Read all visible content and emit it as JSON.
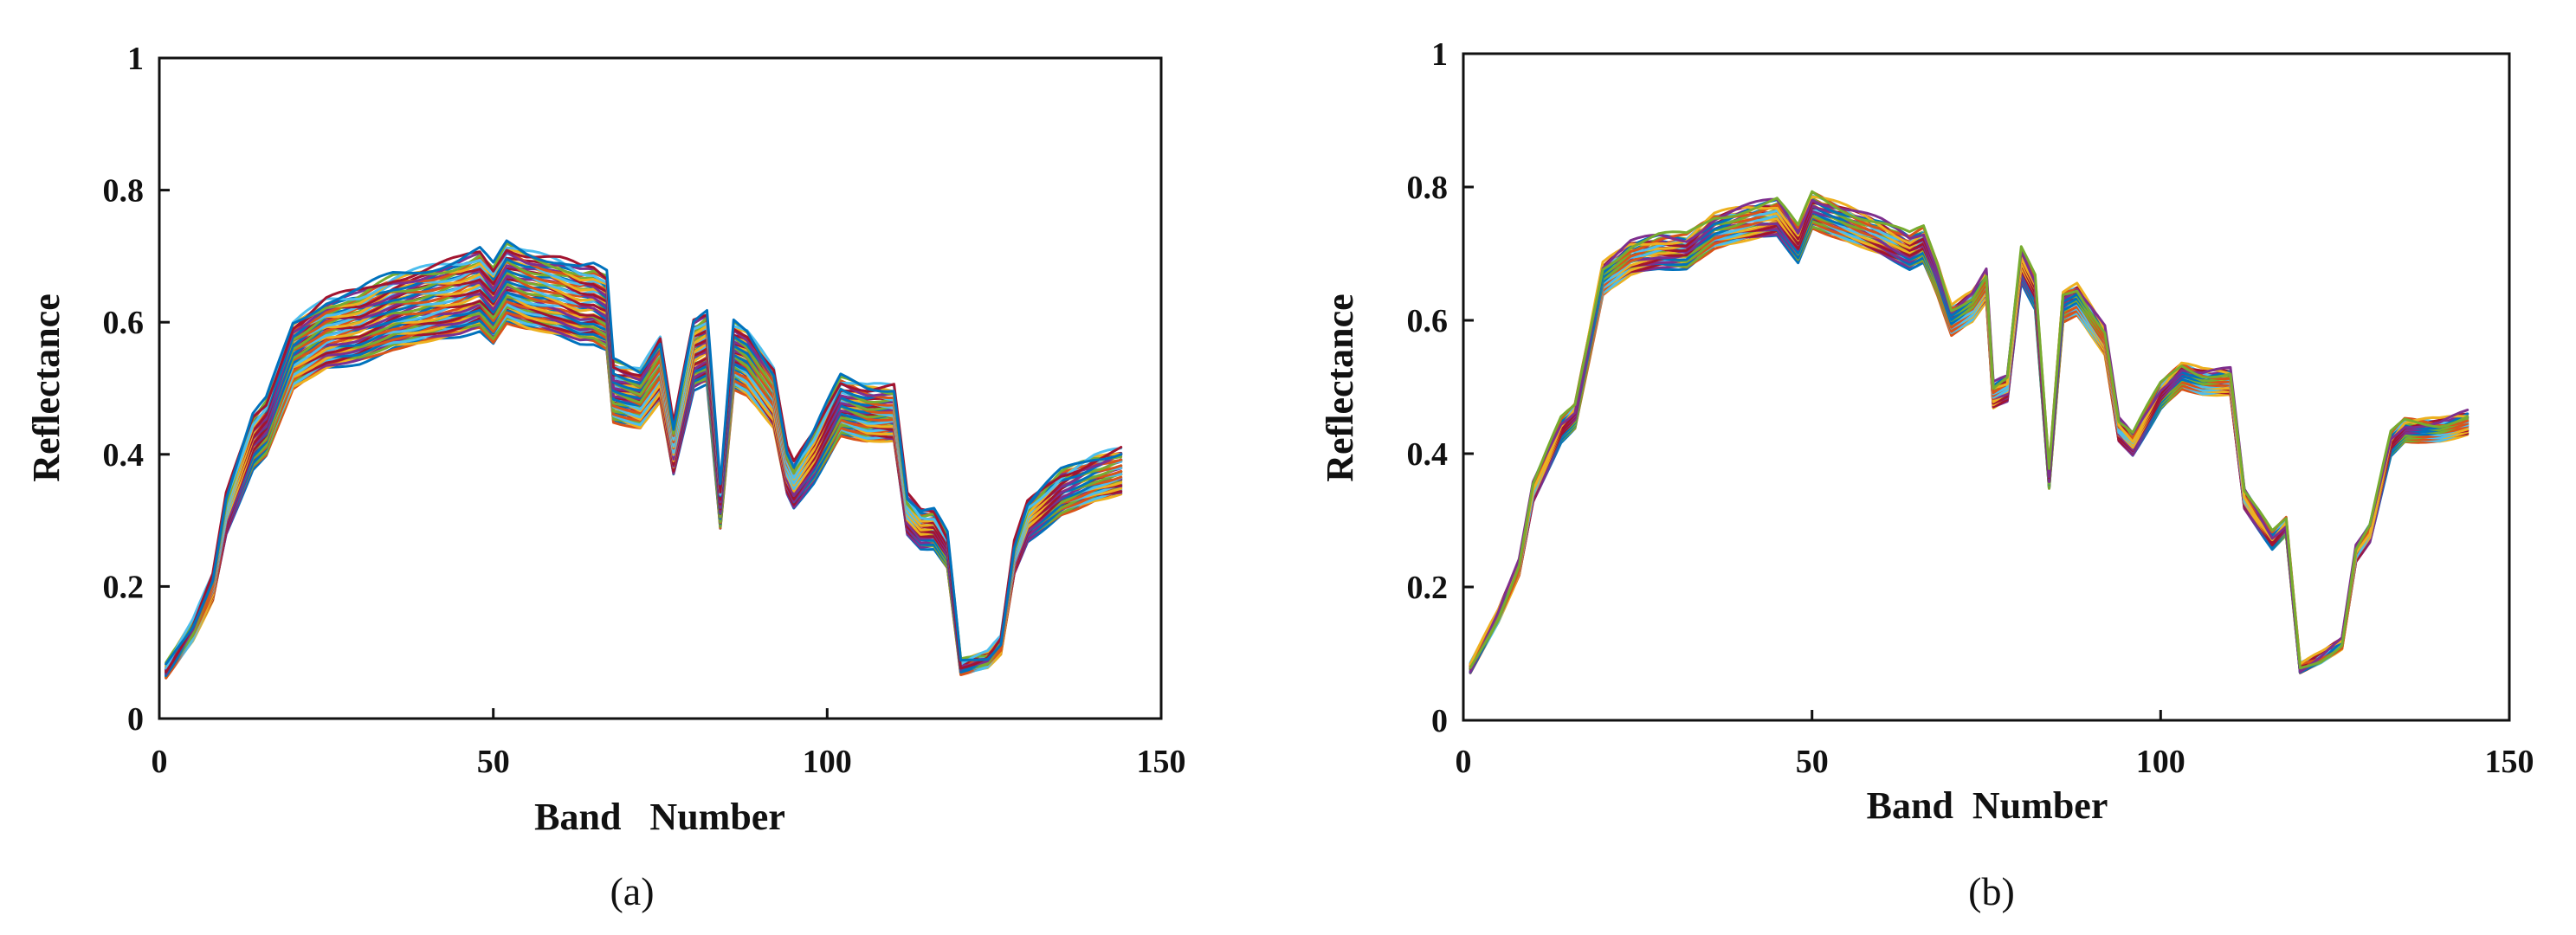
{
  "chart_data": [
    {
      "type": "line",
      "panel": "(a)",
      "caption": "(a)",
      "xlabel": "Band   Number",
      "ylabel": "Reflectance",
      "xlim": [
        0,
        150
      ],
      "ylim": [
        0,
        1
      ],
      "xticks": [
        0,
        50,
        100,
        150
      ],
      "yticks": [
        0,
        0.2,
        0.4,
        0.6,
        0.8,
        1
      ],
      "xtick_labels": [
        "0",
        "50",
        "100",
        "150"
      ],
      "ytick_labels": [
        "0",
        "0.2",
        "0.4",
        "0.6",
        "0.8",
        "1"
      ],
      "x_start": 1,
      "x_end": 144,
      "spread": 0.09,
      "envelope_anchors": [
        [
          1,
          0.065
        ],
        [
          5,
          0.12
        ],
        [
          8,
          0.18
        ],
        [
          10,
          0.28
        ],
        [
          14,
          0.38
        ],
        [
          16,
          0.4
        ],
        [
          20,
          0.5
        ],
        [
          25,
          0.53
        ],
        [
          30,
          0.54
        ],
        [
          35,
          0.56
        ],
        [
          40,
          0.57
        ],
        [
          45,
          0.58
        ],
        [
          48,
          0.59
        ],
        [
          50,
          0.57
        ],
        [
          52,
          0.6
        ],
        [
          55,
          0.59
        ],
        [
          60,
          0.58
        ],
        [
          63,
          0.57
        ],
        [
          65,
          0.57
        ],
        [
          67,
          0.56
        ],
        [
          68,
          0.45
        ],
        [
          72,
          0.44
        ],
        [
          75,
          0.48
        ],
        [
          77,
          0.37
        ],
        [
          80,
          0.5
        ],
        [
          82,
          0.51
        ],
        [
          84,
          0.29
        ],
        [
          86,
          0.5
        ],
        [
          88,
          0.49
        ],
        [
          92,
          0.44
        ],
        [
          94,
          0.34
        ],
        [
          95,
          0.32
        ],
        [
          98,
          0.36
        ],
        [
          102,
          0.43
        ],
        [
          106,
          0.42
        ],
        [
          110,
          0.42
        ],
        [
          112,
          0.28
        ],
        [
          114,
          0.26
        ],
        [
          116,
          0.26
        ],
        [
          118,
          0.23
        ],
        [
          120,
          0.07
        ],
        [
          124,
          0.08
        ],
        [
          126,
          0.1
        ],
        [
          128,
          0.22
        ],
        [
          130,
          0.27
        ],
        [
          135,
          0.31
        ],
        [
          140,
          0.33
        ],
        [
          144,
          0.34
        ]
      ],
      "series_count": 50,
      "series_colors": [
        "#0072BD",
        "#D95319",
        "#EDB120",
        "#7E2F8E",
        "#77AC30",
        "#4DBEEE",
        "#A2142F"
      ]
    },
    {
      "type": "line",
      "panel": "(b)",
      "caption": "(b)",
      "xlabel": "Band  Number",
      "ylabel": "Reflectance",
      "xlim": [
        0,
        150
      ],
      "ylim": [
        0,
        1
      ],
      "xticks": [
        0,
        50,
        100,
        150
      ],
      "yticks": [
        0,
        0.2,
        0.4,
        0.6,
        0.8,
        1
      ],
      "xtick_labels": [
        "0",
        "50",
        "100",
        "150"
      ],
      "ytick_labels": [
        "0",
        "0.2",
        "0.4",
        "0.6",
        "0.8",
        "1"
      ],
      "x_start": 1,
      "x_end": 144,
      "spread": 0.03,
      "envelope_anchors": [
        [
          1,
          0.075
        ],
        [
          5,
          0.15
        ],
        [
          8,
          0.22
        ],
        [
          10,
          0.33
        ],
        [
          14,
          0.42
        ],
        [
          16,
          0.44
        ],
        [
          20,
          0.64
        ],
        [
          24,
          0.67
        ],
        [
          28,
          0.68
        ],
        [
          32,
          0.68
        ],
        [
          36,
          0.71
        ],
        [
          40,
          0.72
        ],
        [
          45,
          0.73
        ],
        [
          48,
          0.69
        ],
        [
          50,
          0.74
        ],
        [
          55,
          0.72
        ],
        [
          60,
          0.7
        ],
        [
          64,
          0.68
        ],
        [
          66,
          0.69
        ],
        [
          68,
          0.64
        ],
        [
          70,
          0.58
        ],
        [
          73,
          0.6
        ],
        [
          75,
          0.63
        ],
        [
          76,
          0.47
        ],
        [
          78,
          0.48
        ],
        [
          80,
          0.66
        ],
        [
          82,
          0.62
        ],
        [
          84,
          0.35
        ],
        [
          86,
          0.6
        ],
        [
          88,
          0.61
        ],
        [
          92,
          0.55
        ],
        [
          94,
          0.42
        ],
        [
          96,
          0.4
        ],
        [
          100,
          0.47
        ],
        [
          103,
          0.5
        ],
        [
          106,
          0.49
        ],
        [
          110,
          0.49
        ],
        [
          112,
          0.32
        ],
        [
          114,
          0.29
        ],
        [
          116,
          0.26
        ],
        [
          118,
          0.28
        ],
        [
          120,
          0.075
        ],
        [
          123,
          0.09
        ],
        [
          126,
          0.11
        ],
        [
          128,
          0.24
        ],
        [
          130,
          0.27
        ],
        [
          133,
          0.4
        ],
        [
          135,
          0.42
        ],
        [
          140,
          0.42
        ],
        [
          144,
          0.43
        ]
      ],
      "series_count": 40,
      "series_colors": [
        "#0072BD",
        "#D95319",
        "#EDB120",
        "#7E2F8E",
        "#77AC30",
        "#4DBEEE",
        "#A2142F"
      ]
    }
  ]
}
